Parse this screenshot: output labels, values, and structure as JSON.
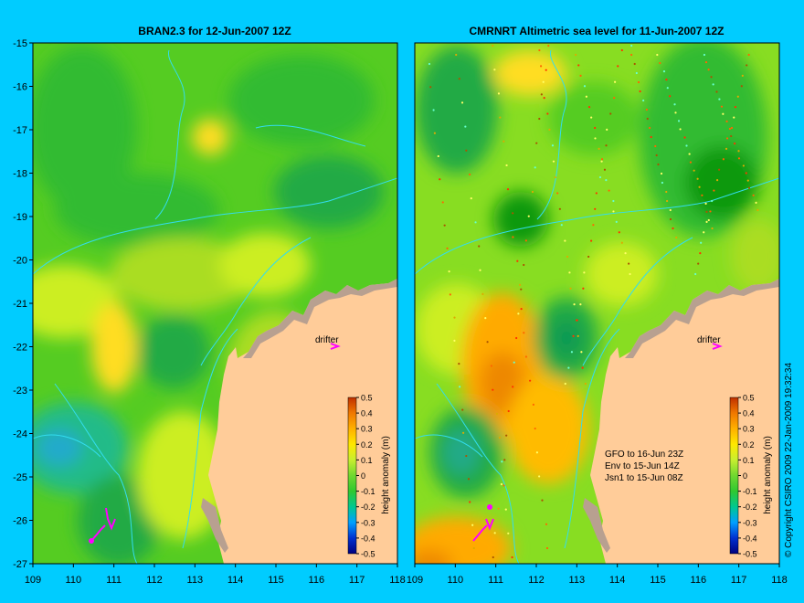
{
  "left_panel": {
    "title": "BRAN2.3 for 12-Jun-2007 12Z",
    "drifter_label": "drifter",
    "colorbar_title": "height anomaly (m)"
  },
  "right_panel": {
    "title": "CMRNRT Altimetric sea level  for 11-Jun-2007 12Z",
    "drifter_label": "drifter",
    "colorbar_title": "height anomaly (m)",
    "satellite_info": [
      "GFO to 16-Jun 23Z",
      "Env to 15-Jun 14Z",
      "Jsn1 to 15-Jun 08Z"
    ]
  },
  "copyright": "© Copyright CSIRO 2009   22-Jan-2009 19:32:34",
  "axes": {
    "x_ticks": [
      "109",
      "110",
      "111",
      "112",
      "113",
      "114",
      "115",
      "116",
      "117",
      "118"
    ],
    "y_ticks": [
      "-15",
      "-16",
      "-17",
      "-18",
      "-19",
      "-20",
      "-21",
      "-22",
      "-23",
      "-24",
      "-25",
      "-26",
      "-27"
    ],
    "lon_range": [
      109,
      118
    ],
    "lat_range": [
      -27,
      -15
    ]
  },
  "colorbar": {
    "labels": [
      "0.5",
      "0.4",
      "0.3",
      "0.2",
      "0.1",
      "0",
      "-0.1",
      "-0.2",
      "-0.3",
      "-0.4",
      "-0.5"
    ],
    "range": [
      -0.5,
      0.5
    ],
    "colors": [
      "#00007f",
      "#0030d0",
      "#00a0ff",
      "#00e0b0",
      "#30c830",
      "#70d830",
      "#c8ee30",
      "#ffe800",
      "#ffb000",
      "#f07800",
      "#c03000"
    ]
  },
  "colors": {
    "background": "#00ccff",
    "land": "#ffcc99",
    "coast_rock": "#b8a090",
    "isobath": "#33ddee",
    "drifter": "#ff00ff",
    "sla_green": "#33cc33",
    "sla_dark_green": "#119911",
    "sla_light_green": "#88dd22",
    "sla_yellow": "#ccee22",
    "sla_orange": "#ffaa00",
    "sla_teal": "#22ccaa"
  }
}
